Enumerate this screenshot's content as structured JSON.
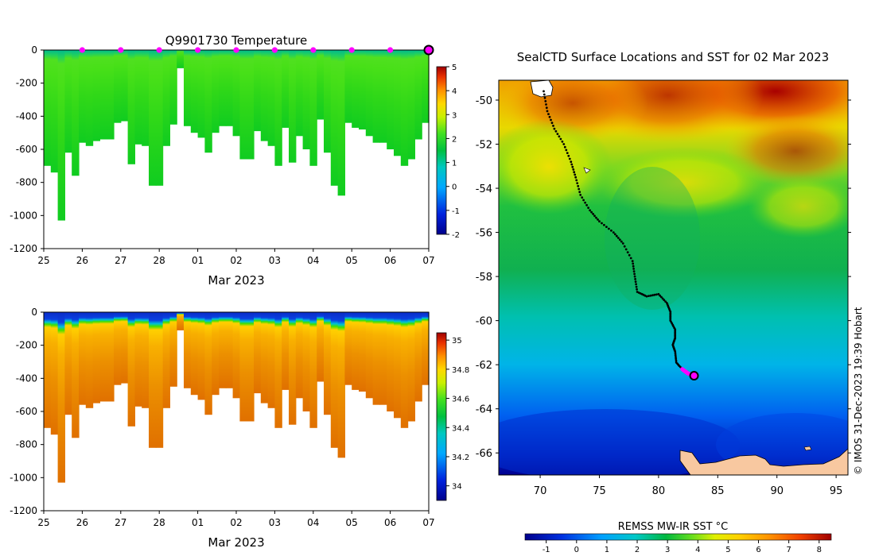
{
  "chart_data": [
    {
      "type": "heatmap",
      "title": "Q9901730  Temperature",
      "xlabel": "Mar 2023",
      "ylabel": "",
      "x_ticks": [
        "25",
        "26",
        "27",
        "28",
        "01",
        "02",
        "03",
        "04",
        "05",
        "06",
        "07"
      ],
      "y_ticks": [
        0,
        -200,
        -400,
        -600,
        -800,
        -1000,
        -1200
      ],
      "ylim": [
        -1200,
        0
      ],
      "colorbar": {
        "min": -2,
        "max": 5,
        "ticks": [
          "5",
          "4",
          "3",
          "2",
          "1",
          "0",
          "-1",
          "-2"
        ]
      },
      "profile_depths": [
        -700,
        -740,
        -1030,
        -620,
        -760,
        -560,
        -580,
        -550,
        -540,
        -540,
        -440,
        -430,
        -690,
        -570,
        -580,
        -820,
        -820,
        -580,
        -450,
        -110,
        -460,
        -500,
        -530,
        -620,
        -500,
        -460,
        -460,
        -520,
        -660,
        -660,
        -490,
        -550,
        -580,
        -700,
        -470,
        -680,
        -520,
        -600,
        -700,
        -420,
        -620,
        -820,
        -880,
        -440,
        -470,
        -480,
        -520,
        -560,
        -560,
        -600,
        -640,
        -700,
        -660,
        -540,
        -440
      ],
      "surface_markers": [
        "26",
        "27",
        "28",
        "01",
        "02",
        "03",
        "04",
        "05",
        "06"
      ],
      "current_marker": "07"
    },
    {
      "type": "heatmap",
      "title": "",
      "xlabel": "Mar 2023",
      "ylabel": "",
      "x_ticks": [
        "25",
        "26",
        "27",
        "28",
        "01",
        "02",
        "03",
        "04",
        "05",
        "06",
        "07"
      ],
      "y_ticks": [
        0,
        -200,
        -400,
        -600,
        -800,
        -1000,
        -1200
      ],
      "ylim": [
        -1200,
        0
      ],
      "colorbar": {
        "min": 33.9,
        "max": 35.05,
        "ticks": [
          "35",
          "34.8",
          "34.6",
          "34.4",
          "34.2",
          "34"
        ]
      }
    },
    {
      "type": "heatmap",
      "title": "SealCTD Surface Locations and SST for 02 Mar 2023",
      "xlabel": "",
      "ylabel": "",
      "x_ticks": [
        "70",
        "75",
        "80",
        "85",
        "90",
        "95"
      ],
      "y_ticks": [
        "-50",
        "-52",
        "-54",
        "-56",
        "-58",
        "-60",
        "-62",
        "-64",
        "-66"
      ],
      "xlim": [
        66.5,
        96
      ],
      "ylim": [
        -67,
        -49.1
      ],
      "track": [
        [
          70.3,
          -49.6
        ],
        [
          70.6,
          -50.5
        ],
        [
          71.2,
          -51.3
        ],
        [
          72.0,
          -52.0
        ],
        [
          72.6,
          -52.8
        ],
        [
          73.0,
          -53.5
        ],
        [
          73.4,
          -54.3
        ],
        [
          74.2,
          -55.0
        ],
        [
          75.0,
          -55.5
        ],
        [
          76.2,
          -56.0
        ],
        [
          77.0,
          -56.5
        ],
        [
          77.8,
          -57.3
        ],
        [
          78.0,
          -58.0
        ],
        [
          78.2,
          -58.7
        ],
        [
          79.0,
          -58.9
        ],
        [
          80.0,
          -58.8
        ],
        [
          80.7,
          -59.2
        ],
        [
          81.0,
          -59.6
        ],
        [
          81.0,
          -60.0
        ],
        [
          81.4,
          -60.4
        ],
        [
          81.4,
          -60.8
        ],
        [
          81.2,
          -61.1
        ],
        [
          81.4,
          -61.4
        ],
        [
          81.5,
          -61.9
        ],
        [
          82.0,
          -62.2
        ],
        [
          82.5,
          -62.4
        ],
        [
          83.0,
          -62.5
        ]
      ],
      "current_position": [
        83.0,
        -62.5
      ],
      "colorbar_label": "REMSS MW-IR SST °C",
      "colorbar_ticks": [
        "-1",
        "0",
        "1",
        "2",
        "3",
        "4",
        "5",
        "6",
        "7",
        "8"
      ],
      "colorbar_range": [
        -1.7,
        8.4
      ],
      "credit": "© IMOS 31-Dec-2023 19:39 Hobart"
    }
  ]
}
